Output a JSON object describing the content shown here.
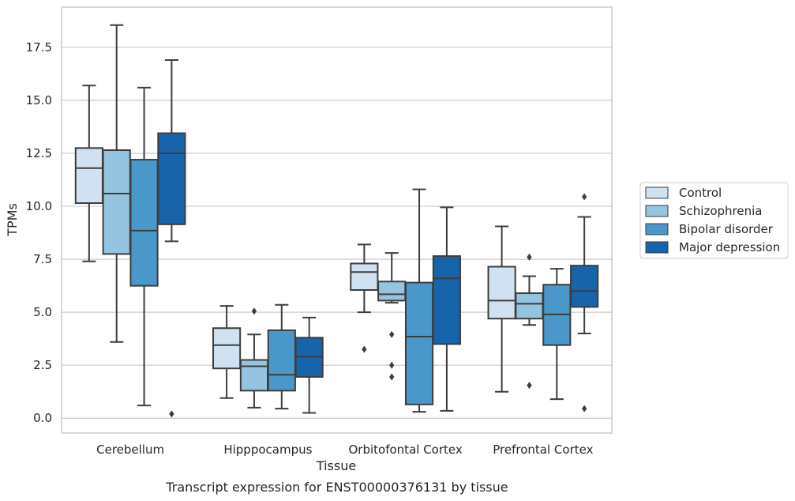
{
  "chart_data": {
    "type": "box",
    "title": "",
    "caption": "Transcript expression for ENST00000376131 by tissue",
    "xlabel": "Tissue",
    "ylabel": "TPMs",
    "ylim": [
      -0.7,
      19.4
    ],
    "yticks": [
      0.0,
      2.5,
      5.0,
      7.5,
      10.0,
      12.5,
      15.0,
      17.5
    ],
    "ytick_labels": [
      "0.0",
      "2.5",
      "5.0",
      "7.5",
      "10.0",
      "12.5",
      "15.0",
      "17.5"
    ],
    "grid": "horizontal",
    "legend_position": "right",
    "categories": [
      "Cerebellum",
      "Hipppocampus",
      "Orbitofontal Cortex",
      "Prefrontal Cortex"
    ],
    "series": [
      {
        "name": "Control",
        "color": "#d0e1f2",
        "boxes": [
          {
            "whislo": 7.4,
            "q1": 10.15,
            "median": 11.8,
            "q3": 12.75,
            "whishi": 15.7,
            "fliers": []
          },
          {
            "whislo": 0.95,
            "q1": 2.35,
            "median": 3.45,
            "q3": 4.25,
            "whishi": 5.3,
            "fliers": []
          },
          {
            "whislo": 5.0,
            "q1": 6.05,
            "median": 6.9,
            "q3": 7.3,
            "whishi": 8.2,
            "fliers": [
              3.25
            ]
          },
          {
            "whislo": 1.25,
            "q1": 4.7,
            "median": 5.55,
            "q3": 7.15,
            "whishi": 9.05,
            "fliers": []
          }
        ]
      },
      {
        "name": "Schizophrenia",
        "color": "#94c4df",
        "boxes": [
          {
            "whislo": 3.6,
            "q1": 7.75,
            "median": 10.6,
            "q3": 12.65,
            "whishi": 18.55,
            "fliers": []
          },
          {
            "whislo": 0.5,
            "q1": 1.3,
            "median": 2.45,
            "q3": 2.75,
            "whishi": 3.95,
            "fliers": [
              5.05
            ]
          },
          {
            "whislo": 5.45,
            "q1": 5.55,
            "median": 5.85,
            "q3": 6.45,
            "whishi": 7.8,
            "fliers": [
              3.95,
              2.5,
              1.95
            ]
          },
          {
            "whislo": 4.4,
            "q1": 4.7,
            "median": 5.4,
            "q3": 5.9,
            "whishi": 6.7,
            "fliers": [
              7.6,
              1.55
            ]
          }
        ]
      },
      {
        "name": "Bipolar disorder",
        "color": "#4a98c9",
        "boxes": [
          {
            "whislo": 0.6,
            "q1": 6.25,
            "median": 8.85,
            "q3": 12.2,
            "whishi": 15.6,
            "fliers": []
          },
          {
            "whislo": 0.45,
            "q1": 1.3,
            "median": 2.05,
            "q3": 4.15,
            "whishi": 5.35,
            "fliers": []
          },
          {
            "whislo": 0.3,
            "q1": 0.65,
            "median": 3.85,
            "q3": 6.4,
            "whishi": 10.8,
            "fliers": []
          },
          {
            "whislo": 0.9,
            "q1": 3.45,
            "median": 4.9,
            "q3": 6.3,
            "whishi": 7.05,
            "fliers": []
          }
        ]
      },
      {
        "name": "Major depression",
        "color": "#1764ab",
        "boxes": [
          {
            "whislo": 8.35,
            "q1": 9.15,
            "median": 12.5,
            "q3": 13.45,
            "whishi": 16.9,
            "fliers": [
              0.2
            ]
          },
          {
            "whislo": 0.25,
            "q1": 1.95,
            "median": 2.9,
            "q3": 3.8,
            "whishi": 4.75,
            "fliers": []
          },
          {
            "whislo": 0.35,
            "q1": 3.5,
            "median": 6.6,
            "q3": 7.65,
            "whishi": 9.95,
            "fliers": []
          },
          {
            "whislo": 4.0,
            "q1": 5.25,
            "median": 6.0,
            "q3": 7.2,
            "whishi": 9.5,
            "fliers": [
              10.45,
              0.45
            ]
          }
        ]
      }
    ]
  }
}
